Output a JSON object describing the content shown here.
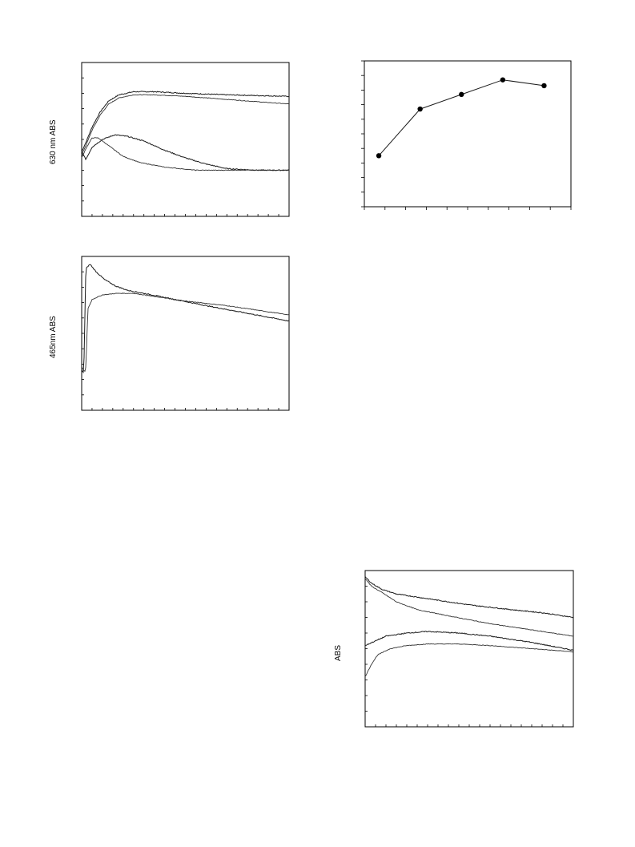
{
  "chart_data": [
    {
      "type": "line",
      "ylabel": "630 nm ABS",
      "xlim": [
        0,
        1
      ],
      "ylim": [
        0,
        1
      ],
      "series": [
        {
          "values": [
            [
              0,
              0.42
            ],
            [
              0.02,
              0.48
            ],
            [
              0.05,
              0.58
            ],
            [
              0.09,
              0.68
            ],
            [
              0.13,
              0.75
            ],
            [
              0.18,
              0.79
            ],
            [
              0.25,
              0.81
            ],
            [
              0.35,
              0.81
            ],
            [
              0.5,
              0.8
            ],
            [
              0.7,
              0.79
            ],
            [
              1,
              0.78
            ]
          ]
        },
        {
          "values": [
            [
              0,
              0.4
            ],
            [
              0.02,
              0.46
            ],
            [
              0.05,
              0.56
            ],
            [
              0.09,
              0.66
            ],
            [
              0.13,
              0.73
            ],
            [
              0.18,
              0.77
            ],
            [
              0.25,
              0.79
            ],
            [
              0.35,
              0.79
            ],
            [
              0.5,
              0.78
            ],
            [
              0.7,
              0.76
            ],
            [
              1,
              0.73
            ]
          ]
        },
        {
          "values": [
            [
              0,
              0.42
            ],
            [
              0.02,
              0.37
            ],
            [
              0.05,
              0.45
            ],
            [
              0.1,
              0.5
            ],
            [
              0.16,
              0.53
            ],
            [
              0.22,
              0.52
            ],
            [
              0.3,
              0.49
            ],
            [
              0.4,
              0.43
            ],
            [
              0.5,
              0.38
            ],
            [
              0.6,
              0.34
            ],
            [
              0.7,
              0.31
            ],
            [
              0.85,
              0.3
            ],
            [
              1,
              0.3
            ]
          ]
        },
        {
          "values": [
            [
              0,
              0.38
            ],
            [
              0.02,
              0.44
            ],
            [
              0.05,
              0.51
            ],
            [
              0.08,
              0.51
            ],
            [
              0.12,
              0.47
            ],
            [
              0.2,
              0.39
            ],
            [
              0.28,
              0.35
            ],
            [
              0.4,
              0.32
            ],
            [
              0.55,
              0.3
            ],
            [
              0.75,
              0.3
            ],
            [
              1,
              0.3
            ]
          ]
        }
      ]
    },
    {
      "type": "line",
      "ylabel": "465nm ABS",
      "xlim": [
        0,
        1
      ],
      "ylim": [
        0,
        1
      ],
      "series": [
        {
          "values": [
            [
              0,
              0.26
            ],
            [
              0.01,
              0.24
            ],
            [
              0.02,
              0.92
            ],
            [
              0.04,
              0.95
            ],
            [
              0.07,
              0.9
            ],
            [
              0.11,
              0.85
            ],
            [
              0.16,
              0.81
            ],
            [
              0.22,
              0.78
            ],
            [
              0.3,
              0.76
            ],
            [
              0.45,
              0.72
            ],
            [
              0.6,
              0.68
            ],
            [
              0.8,
              0.63
            ],
            [
              1,
              0.58
            ]
          ]
        },
        {
          "values": [
            [
              0,
              0.28
            ],
            [
              0.015,
              0.25
            ],
            [
              0.02,
              0.28
            ],
            [
              0.03,
              0.66
            ],
            [
              0.05,
              0.72
            ],
            [
              0.1,
              0.75
            ],
            [
              0.17,
              0.76
            ],
            [
              0.25,
              0.76
            ],
            [
              0.35,
              0.74
            ],
            [
              0.5,
              0.71
            ],
            [
              0.7,
              0.68
            ],
            [
              0.85,
              0.65
            ],
            [
              1,
              0.62
            ]
          ]
        }
      ]
    },
    {
      "type": "line",
      "xlim": [
        0,
        1
      ],
      "ylim": [
        0,
        1
      ],
      "marker": "circle",
      "series": [
        {
          "values": [
            [
              0.07,
              0.35
            ],
            [
              0.27,
              0.67
            ],
            [
              0.47,
              0.77
            ],
            [
              0.67,
              0.87
            ],
            [
              0.87,
              0.83
            ]
          ]
        }
      ]
    },
    {
      "type": "line",
      "ylabel": "ABS",
      "xlim": [
        0,
        1
      ],
      "ylim": [
        0,
        1
      ],
      "series": [
        {
          "values": [
            [
              0,
              0.96
            ],
            [
              0.03,
              0.92
            ],
            [
              0.08,
              0.88
            ],
            [
              0.15,
              0.85
            ],
            [
              0.3,
              0.82
            ],
            [
              0.5,
              0.78
            ],
            [
              0.7,
              0.75
            ],
            [
              0.85,
              0.73
            ],
            [
              1,
              0.7
            ]
          ]
        },
        {
          "values": [
            [
              0,
              0.95
            ],
            [
              0.03,
              0.9
            ],
            [
              0.08,
              0.86
            ],
            [
              0.15,
              0.8
            ],
            [
              0.25,
              0.75
            ],
            [
              0.4,
              0.71
            ],
            [
              0.6,
              0.66
            ],
            [
              0.8,
              0.62
            ],
            [
              1,
              0.58
            ]
          ]
        },
        {
          "values": [
            [
              0,
              0.52
            ],
            [
              0.05,
              0.55
            ],
            [
              0.1,
              0.58
            ],
            [
              0.2,
              0.6
            ],
            [
              0.3,
              0.61
            ],
            [
              0.45,
              0.6
            ],
            [
              0.6,
              0.58
            ],
            [
              0.8,
              0.54
            ],
            [
              1,
              0.49
            ]
          ]
        },
        {
          "values": [
            [
              0,
              0.32
            ],
            [
              0.03,
              0.4
            ],
            [
              0.06,
              0.46
            ],
            [
              0.12,
              0.5
            ],
            [
              0.2,
              0.52
            ],
            [
              0.3,
              0.53
            ],
            [
              0.45,
              0.53
            ],
            [
              0.6,
              0.52
            ],
            [
              0.8,
              0.5
            ],
            [
              1,
              0.48
            ]
          ]
        }
      ]
    }
  ]
}
